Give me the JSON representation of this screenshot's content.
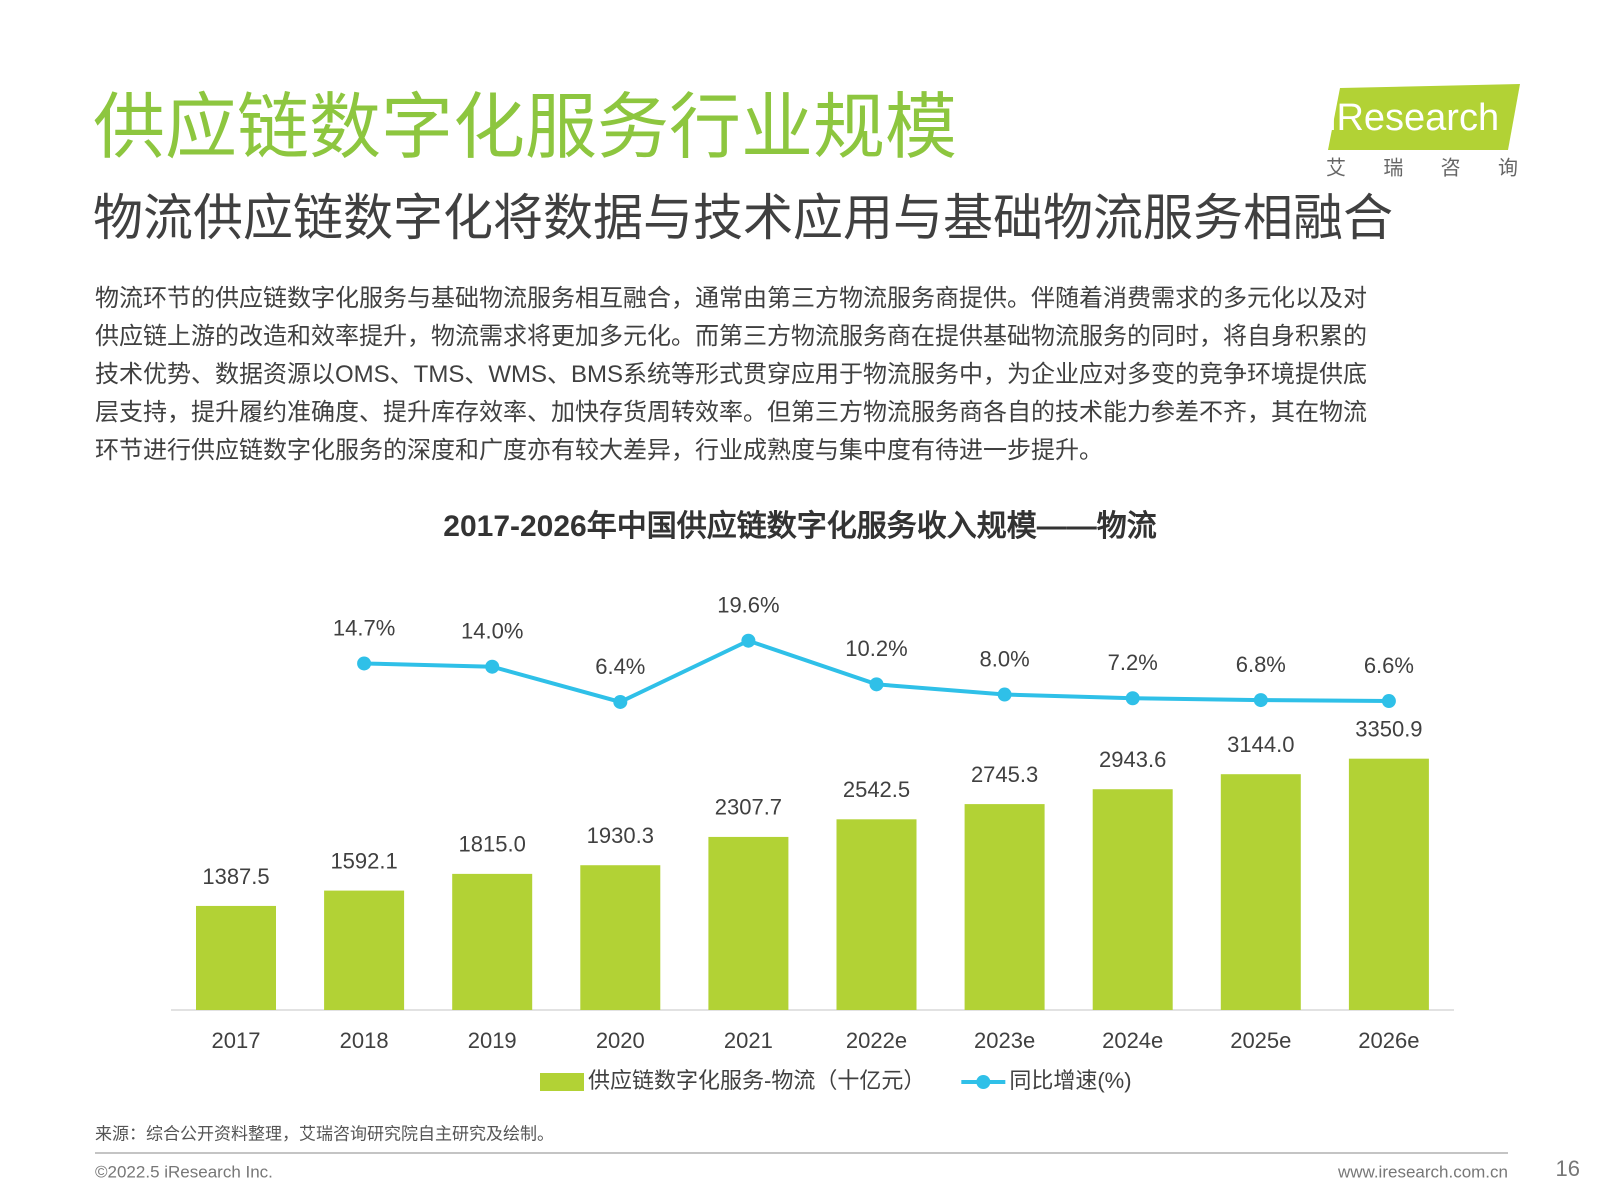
{
  "title": "供应链数字化服务行业规模",
  "subtitle": "物流供应链数字化将数据与技术应用与基础物流服务相融合",
  "logo": {
    "brand": "iResearch",
    "chinese": "艾 瑞 咨 询"
  },
  "paragraph": [
    "物流环节的供应链数字化服务与基础物流服务相互融合，通常由第三方物流服务商提供。伴随着消费需求的多元化以及对",
    "供应链上游的改造和效率提升，物流需求将更加多元化。而第三方物流服务商在提供基础物流服务的同时，将自身积累的",
    "技术优势、数据资源以OMS、TMS、WMS、BMS系统等形式贯穿应用于物流服务中，为企业应对多变的竞争环境提供底",
    "层支持，提升履约准确度、提升库存效率、加快存货周转效率。但第三方物流服务商各自的技术能力参差不齐，其在物流",
    "环节进行供应链数字化服务的深度和广度亦有较大差异，行业成熟度与集中度有待进一步提升。"
  ],
  "chart_data": {
    "type": "bar",
    "title": "2017-2026年中国供应链数字化服务收入规模——物流",
    "categories": [
      "2017",
      "2018",
      "2019",
      "2020",
      "2021",
      "2022e",
      "2023e",
      "2024e",
      "2025e",
      "2026e"
    ],
    "series": [
      {
        "name": "供应链数字化服务-物流（十亿元）",
        "type": "bar",
        "color": "#b2d235",
        "values": [
          1387.5,
          1592.1,
          1815.0,
          1930.3,
          2307.7,
          2542.5,
          2745.3,
          2943.6,
          3144.0,
          3350.9
        ],
        "value_labels": [
          "1387.5",
          "1592.1",
          "1815.0",
          "1930.3",
          "2307.7",
          "2542.5",
          "2745.3",
          "2943.6",
          "3144.0",
          "3350.9"
        ]
      },
      {
        "name": "同比增速(%)",
        "type": "line",
        "axis": "y2",
        "color": "#2fc0e8",
        "values": [
          null,
          14.7,
          14.0,
          6.4,
          19.6,
          10.2,
          8.0,
          7.2,
          6.8,
          6.6
        ],
        "value_labels": [
          null,
          "14.7%",
          "14.0%",
          "6.4%",
          "19.6%",
          "10.2%",
          "8.0%",
          "7.2%",
          "6.8%",
          "6.6%"
        ]
      }
    ],
    "ylim": [
      0,
      6000
    ],
    "y2lim": [
      -60,
      37
    ],
    "legend": "bottom"
  },
  "source": "来源：综合公开资料整理，艾瑞咨询研究院自主研究及绘制。",
  "copyright": "©2022.5 iResearch Inc.",
  "url": "www.iresearch.com.cn",
  "page_number": "16"
}
